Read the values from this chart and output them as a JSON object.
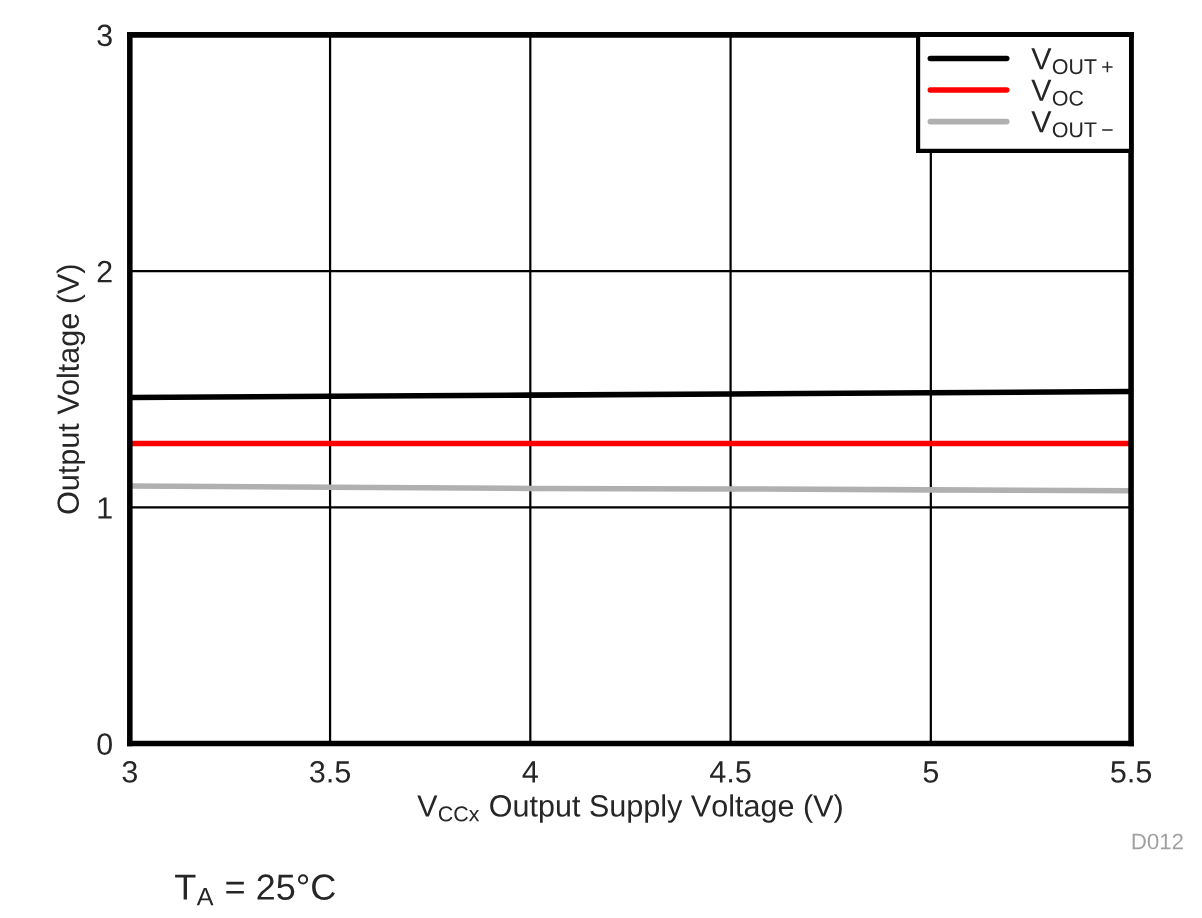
{
  "chart_data": {
    "type": "line",
    "xlabel": "V$_{CCx}$ Output Supply Voltage (V)",
    "ylabel": "Output Voltage (V)",
    "x": [
      3,
      3.5,
      4,
      4.5,
      5,
      5.5
    ],
    "series": [
      {
        "name": "V$_{OUT+}$",
        "color": "#000000",
        "values": [
          1.465,
          1.47,
          1.475,
          1.48,
          1.485,
          1.49
        ]
      },
      {
        "name": "V$_{OC}$",
        "color": "#ff0000",
        "values": [
          1.27,
          1.27,
          1.27,
          1.27,
          1.27,
          1.27
        ]
      },
      {
        "name": "V$_{OUT−}$",
        "color": "#b0b0b0",
        "values": [
          1.09,
          1.085,
          1.08,
          1.078,
          1.074,
          1.07
        ]
      }
    ],
    "xlim": [
      3,
      5.5
    ],
    "xticks": [
      3,
      3.5,
      4,
      4.5,
      5,
      5.5
    ],
    "ylim": [
      0,
      3
    ],
    "yticks": [
      0,
      1,
      2,
      3
    ],
    "grid": true,
    "legend": "top right",
    "marker": "none",
    "line_style": "solid",
    "annotations": [
      "D012",
      "T$_{A}$ = 25°C"
    ]
  }
}
